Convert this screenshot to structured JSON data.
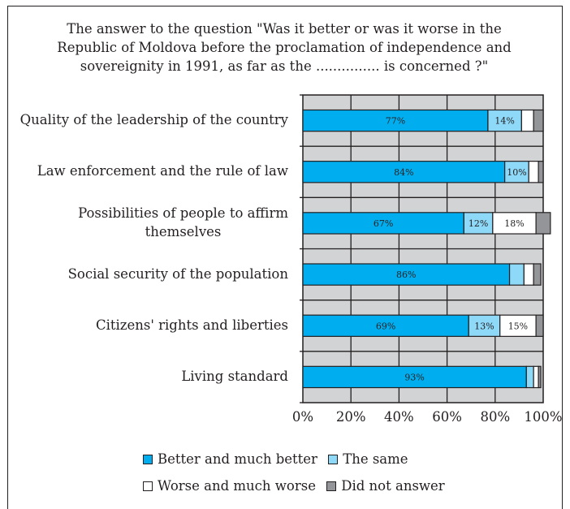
{
  "chart_data": {
    "type": "bar",
    "orientation": "horizontal",
    "stacked": true,
    "title_lines": [
      "The answer to the question \"Was it better or was it worse in the",
      "Republic of  Moldova before the proclamation of independence and",
      "sovereignity in 1991, as far as the  ............... is concerned ?\""
    ],
    "categories": [
      [
        "Quality of the leadership of the country"
      ],
      [
        "Law enforcement and the rule of law"
      ],
      [
        "Possibilities of people to affirm",
        "themselves"
      ],
      [
        "Social security of the population"
      ],
      [
        "Citizens' rights and liberties"
      ],
      [
        "Living standard"
      ]
    ],
    "series": [
      {
        "name": "Better and much better",
        "color": "#00aeef",
        "values": [
          77,
          84,
          67,
          86,
          69,
          93
        ],
        "labels": [
          "77%",
          "84%",
          "67%",
          "86%",
          "69%",
          "93%"
        ]
      },
      {
        "name": "The same",
        "color": "#8ed8f8",
        "values": [
          14,
          10,
          12,
          6,
          13,
          3
        ],
        "labels": [
          "14%",
          "10%",
          "12%",
          "",
          "13%",
          ""
        ]
      },
      {
        "name": "Worse and much worse",
        "color": "#ffffff",
        "values": [
          5,
          4,
          18,
          4,
          15,
          2
        ],
        "labels": [
          "",
          "",
          "18%",
          "",
          "15%",
          ""
        ]
      },
      {
        "name": "Did not answer",
        "color": "#939598",
        "values": [
          4,
          2,
          6,
          3,
          3,
          1
        ],
        "labels": [
          "",
          "",
          "",
          "",
          "",
          ""
        ]
      }
    ],
    "xlim": [
      0,
      100
    ],
    "x_ticks": [
      "0%",
      "20%",
      "40%",
      "60%",
      "80%",
      "100%"
    ],
    "grid": true,
    "plot_background": "#d1d3d4",
    "legend_position": "bottom"
  }
}
